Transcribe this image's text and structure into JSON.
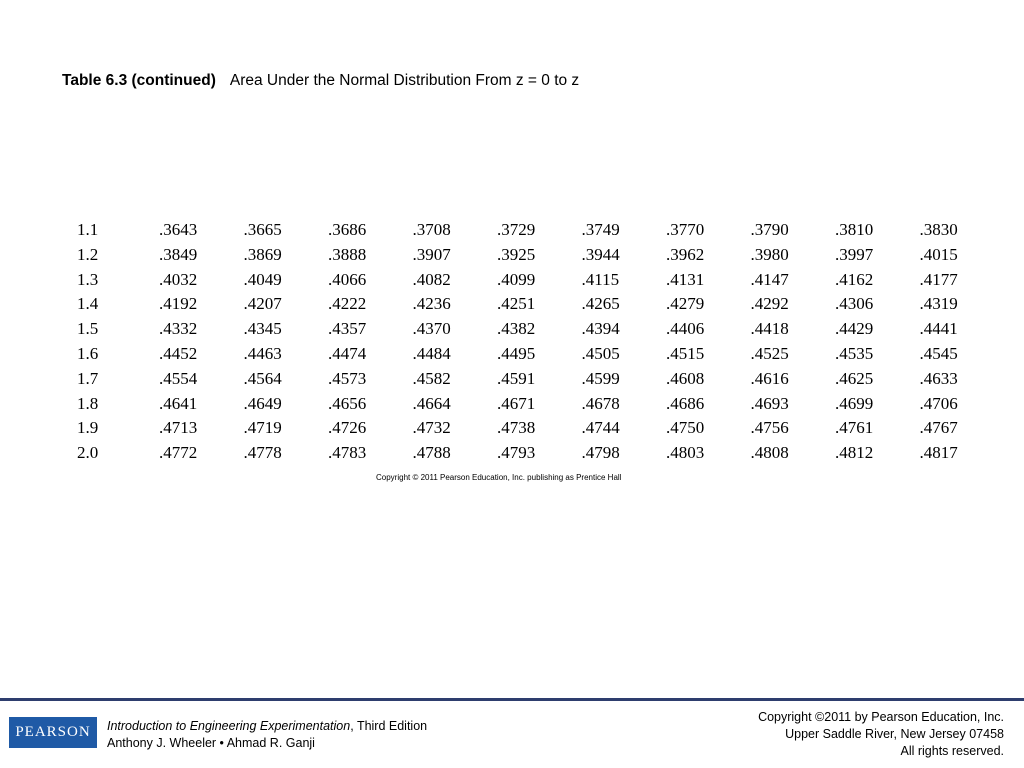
{
  "title": {
    "label": "Table 6.3 (continued)",
    "caption": "Area Under the Normal Distribution From z = 0 to z"
  },
  "table": {
    "rows": [
      {
        "z": "1.1",
        "values": [
          ".3643",
          ".3665",
          ".3686",
          ".3708",
          ".3729",
          ".3749",
          ".3770",
          ".3790",
          ".3810",
          ".3830"
        ]
      },
      {
        "z": "1.2",
        "values": [
          ".3849",
          ".3869",
          ".3888",
          ".3907",
          ".3925",
          ".3944",
          ".3962",
          ".3980",
          ".3997",
          ".4015"
        ]
      },
      {
        "z": "1.3",
        "values": [
          ".4032",
          ".4049",
          ".4066",
          ".4082",
          ".4099",
          ".4115",
          ".4131",
          ".4147",
          ".4162",
          ".4177"
        ]
      },
      {
        "z": "1.4",
        "values": [
          ".4192",
          ".4207",
          ".4222",
          ".4236",
          ".4251",
          ".4265",
          ".4279",
          ".4292",
          ".4306",
          ".4319"
        ]
      },
      {
        "z": "1.5",
        "values": [
          ".4332",
          ".4345",
          ".4357",
          ".4370",
          ".4382",
          ".4394",
          ".4406",
          ".4418",
          ".4429",
          ".4441"
        ]
      },
      {
        "z": "1.6",
        "values": [
          ".4452",
          ".4463",
          ".4474",
          ".4484",
          ".4495",
          ".4505",
          ".4515",
          ".4525",
          ".4535",
          ".4545"
        ]
      },
      {
        "z": "1.7",
        "values": [
          ".4554",
          ".4564",
          ".4573",
          ".4582",
          ".4591",
          ".4599",
          ".4608",
          ".4616",
          ".4625",
          ".4633"
        ]
      },
      {
        "z": "1.8",
        "values": [
          ".4641",
          ".4649",
          ".4656",
          ".4664",
          ".4671",
          ".4678",
          ".4686",
          ".4693",
          ".4699",
          ".4706"
        ]
      },
      {
        "z": "1.9",
        "values": [
          ".4713",
          ".4719",
          ".4726",
          ".4732",
          ".4738",
          ".4744",
          ".4750",
          ".4756",
          ".4761",
          ".4767"
        ]
      },
      {
        "z": "2.0",
        "values": [
          ".4772",
          ".4778",
          ".4783",
          ".4788",
          ".4793",
          ".4798",
          ".4803",
          ".4808",
          ".4812",
          ".4817"
        ]
      }
    ],
    "copyright": "Copyright © 2011 Pearson Education, Inc. publishing as Prentice Hall"
  },
  "footer": {
    "logo_text": "PEARSON",
    "book_title": "Introduction to Engineering Experimentation",
    "edition": ", Third Edition",
    "authors": "Anthony J. Wheeler • Ahmad R. Ganji",
    "copyright_line1": "Copyright ©2011 by Pearson Education, Inc.",
    "copyright_line2": "Upper Saddle River, New Jersey 07458",
    "copyright_line3": "All rights reserved."
  },
  "colors": {
    "footer_line": "#2e3e6e",
    "logo_bg": "#1f5aa6"
  }
}
